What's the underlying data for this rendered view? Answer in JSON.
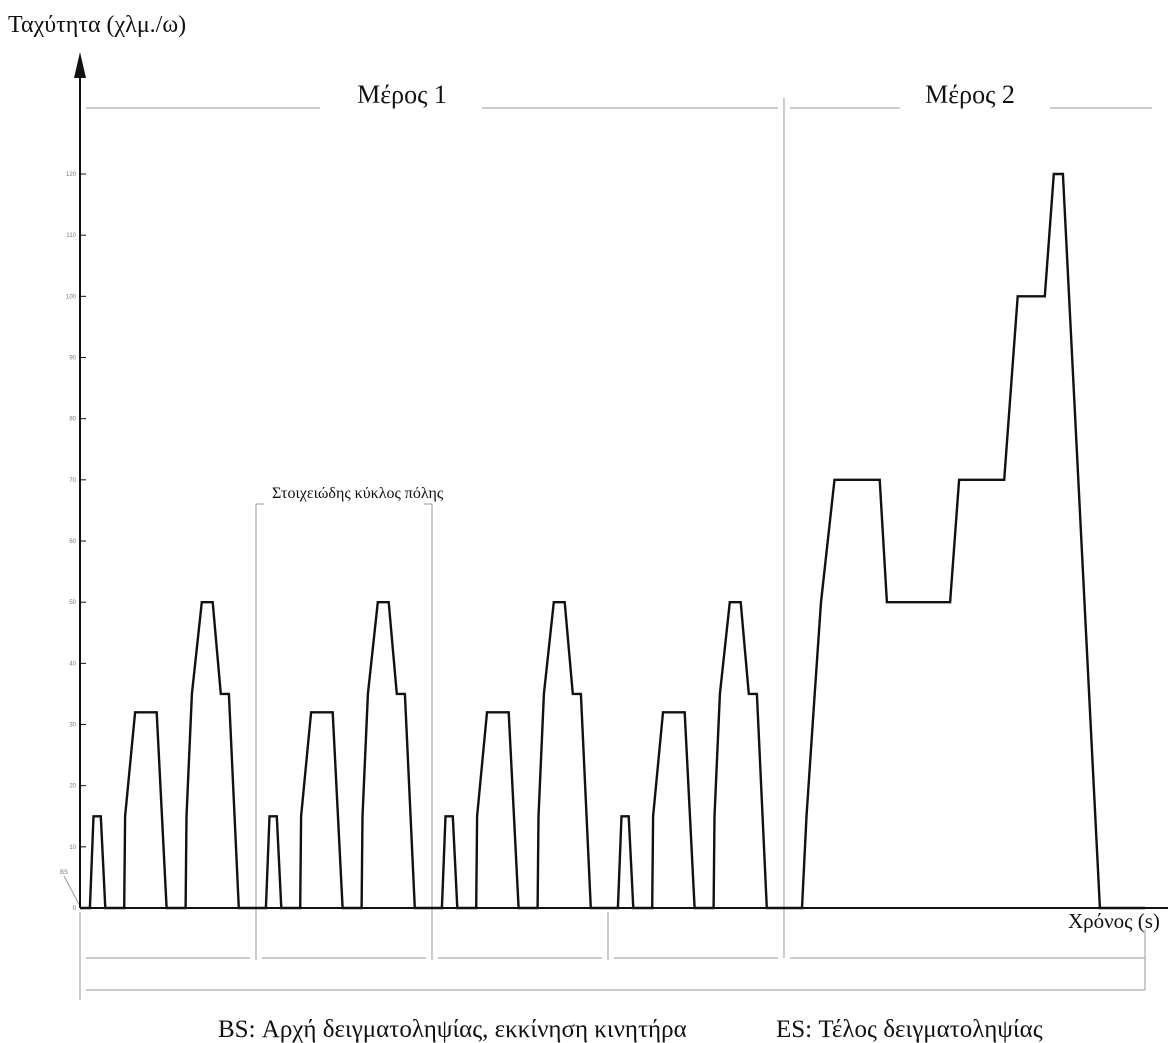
{
  "chart_data": {
    "type": "line",
    "title": "",
    "ylabel": "Ταχύτητα (χλμ./ω)",
    "xlabel": "Χρόνος (s)",
    "xlim": [
      0,
      1180
    ],
    "ylim": [
      0,
      130
    ],
    "y_ticks": [
      0,
      10,
      20,
      30,
      40,
      50,
      60,
      70,
      80,
      90,
      100,
      110,
      120
    ],
    "grid": false,
    "part_labels": [
      "Μέρος 1",
      "Μέρος 2"
    ],
    "part_boundaries": [
      0,
      780,
      1180
    ],
    "elementary_cycle_label": "Στοιχειώδης κύκλος πόλης",
    "elementary_cycle_boundaries": [
      0,
      195,
      390,
      585,
      780
    ],
    "bs_marker": "BS",
    "es_marker": "ES",
    "footnote_bs": "BS: Αρχή δειγματοληψίας, εκκίνηση κινητήρα",
    "footnote_es": "ES: Τέλος δειγματοληψίας",
    "series": [
      {
        "points": [
          [
            0,
            0
          ],
          [
            11,
            0
          ],
          [
            15,
            15
          ],
          [
            23,
            15
          ],
          [
            28,
            0
          ],
          [
            49,
            0
          ],
          [
            50,
            15
          ],
          [
            61,
            32
          ],
          [
            85,
            32
          ],
          [
            96,
            0
          ],
          [
            117,
            0
          ],
          [
            118,
            15
          ],
          [
            124,
            35
          ],
          [
            135,
            50
          ],
          [
            147,
            50
          ],
          [
            156,
            35
          ],
          [
            165,
            35
          ],
          [
            176,
            0
          ],
          [
            195,
            0
          ],
          [
            206,
            0
          ],
          [
            210,
            15
          ],
          [
            218,
            15
          ],
          [
            223,
            0
          ],
          [
            244,
            0
          ],
          [
            245,
            15
          ],
          [
            256,
            32
          ],
          [
            280,
            32
          ],
          [
            291,
            0
          ],
          [
            312,
            0
          ],
          [
            313,
            15
          ],
          [
            319,
            35
          ],
          [
            330,
            50
          ],
          [
            342,
            50
          ],
          [
            351,
            35
          ],
          [
            360,
            35
          ],
          [
            371,
            0
          ],
          [
            390,
            0
          ],
          [
            401,
            0
          ],
          [
            405,
            15
          ],
          [
            413,
            15
          ],
          [
            418,
            0
          ],
          [
            439,
            0
          ],
          [
            440,
            15
          ],
          [
            451,
            32
          ],
          [
            475,
            32
          ],
          [
            486,
            0
          ],
          [
            507,
            0
          ],
          [
            508,
            15
          ],
          [
            514,
            35
          ],
          [
            525,
            50
          ],
          [
            537,
            50
          ],
          [
            546,
            35
          ],
          [
            555,
            35
          ],
          [
            566,
            0
          ],
          [
            585,
            0
          ],
          [
            596,
            0
          ],
          [
            600,
            15
          ],
          [
            608,
            15
          ],
          [
            613,
            0
          ],
          [
            634,
            0
          ],
          [
            635,
            15
          ],
          [
            646,
            32
          ],
          [
            670,
            32
          ],
          [
            681,
            0
          ],
          [
            702,
            0
          ],
          [
            703,
            15
          ],
          [
            709,
            35
          ],
          [
            720,
            50
          ],
          [
            732,
            50
          ],
          [
            741,
            35
          ],
          [
            750,
            35
          ],
          [
            761,
            0
          ],
          [
            780,
            0
          ],
          [
            800,
            0
          ],
          [
            805,
            15
          ],
          [
            814,
            35
          ],
          [
            821,
            50
          ],
          [
            836,
            70
          ],
          [
            886,
            70
          ],
          [
            894,
            50
          ],
          [
            964,
            50
          ],
          [
            974,
            70
          ],
          [
            1024,
            70
          ],
          [
            1039,
            100
          ],
          [
            1069,
            100
          ],
          [
            1079,
            120
          ],
          [
            1089,
            120
          ],
          [
            1130,
            0
          ],
          [
            1180,
            0
          ]
        ]
      }
    ]
  }
}
